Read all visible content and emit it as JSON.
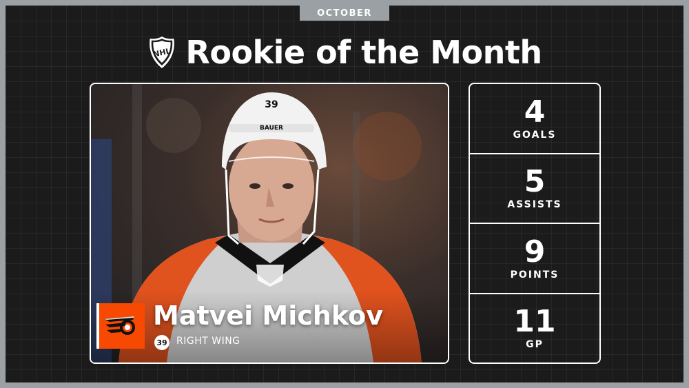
{
  "header": {
    "month": "OCTOBER",
    "title": "Rookie of the Month",
    "league_logo_icon": "nhl-shield-icon"
  },
  "player": {
    "name": "Matvei Michkov",
    "number": "39",
    "position": "RIGHT WING",
    "team_logo_icon": "flyers-logo-icon",
    "helmet_number": "39",
    "helmet_brand": "BAUER"
  },
  "stats": [
    {
      "value": "4",
      "label": "GOALS"
    },
    {
      "value": "5",
      "label": "ASSISTS"
    },
    {
      "value": "9",
      "label": "POINTS"
    },
    {
      "value": "11",
      "label": "GP"
    }
  ],
  "colors": {
    "background": "#1b1b1b",
    "border": "#9aa0a3",
    "team_orange": "#f74902",
    "text": "#ffffff"
  }
}
